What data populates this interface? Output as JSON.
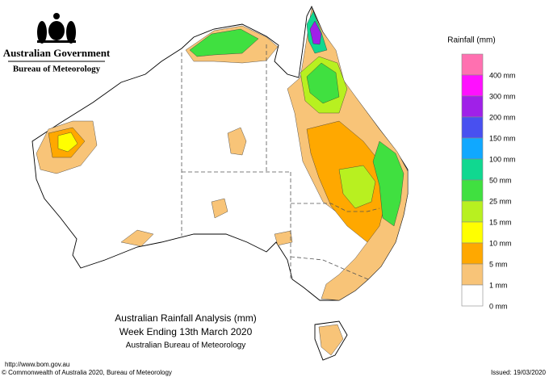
{
  "header": {
    "government": "Australian Government",
    "bureau": "Bureau of Meteorology"
  },
  "legend": {
    "title": "Rainfall (mm)",
    "items": [
      {
        "color": "#ff70b0",
        "label": "400 mm"
      },
      {
        "color": "#ff10ff",
        "label": "300 mm"
      },
      {
        "color": "#a020e8",
        "label": "200 mm"
      },
      {
        "color": "#4850f0",
        "label": "150 mm"
      },
      {
        "color": "#10a8ff",
        "label": "100 mm"
      },
      {
        "color": "#10d890",
        "label": "50 mm"
      },
      {
        "color": "#40e040",
        "label": "25 mm"
      },
      {
        "color": "#b8f020",
        "label": "15 mm"
      },
      {
        "color": "#ffff00",
        "label": "10 mm"
      },
      {
        "color": "#ffa800",
        "label": "5 mm"
      },
      {
        "color": "#f8c478",
        "label": "1 mm"
      },
      {
        "color": "#ffffff",
        "label": "0 mm"
      }
    ]
  },
  "title": {
    "line1": "Australian Rainfall Analysis (mm)",
    "line2": "Week Ending 13th March 2020",
    "line3": "Australian Bureau of Meteorology"
  },
  "footer": {
    "url": "http://www.bom.gov.au",
    "copyright": "© Commonwealth of Australia 2020, Bureau of Meteorology",
    "issued": "Issued: 19/03/2020"
  }
}
